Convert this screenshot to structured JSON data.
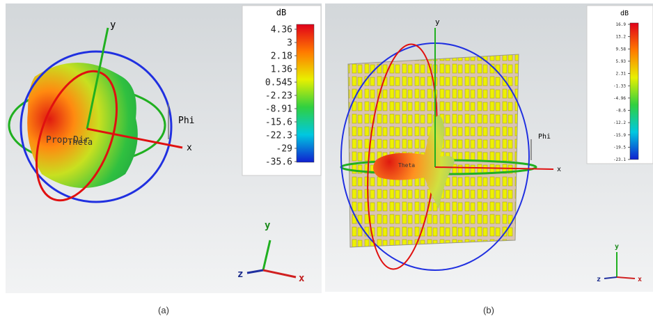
{
  "panels": [
    {
      "caption": "(a)",
      "axes": {
        "y": "y",
        "x": "x",
        "phi": "Phi",
        "theta": "Theta",
        "prop_dir": "Prop.Dir"
      },
      "colorbar": {
        "unit": "dB",
        "labels": [
          "4.36",
          "3",
          "2.18",
          "1.36",
          "0.545",
          "-2.23",
          "-8.91",
          "-15.6",
          "-22.3",
          "-29",
          "-35.6"
        ]
      },
      "triad": {
        "y": "y",
        "z": "z",
        "x": "x"
      }
    },
    {
      "caption": "(b)",
      "axes": {
        "y": "y",
        "x": "x",
        "phi": "Phi",
        "theta": "Theta"
      },
      "colorbar": {
        "unit": "dB",
        "labels": [
          "16.9",
          "13.2",
          "9.58",
          "5.93",
          "2.31",
          "-1.33",
          "-4.96",
          "-8.6",
          "-12.2",
          "-15.9",
          "-19.5",
          "-23.1"
        ]
      },
      "triad": {
        "y": "y",
        "z": "z",
        "x": "x"
      }
    }
  ]
}
